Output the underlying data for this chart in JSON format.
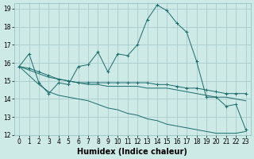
{
  "xlabel": "Humidex (Indice chaleur)",
  "ylabel": "",
  "xlim": [
    -0.5,
    23.5
  ],
  "ylim": [
    12,
    19.3
  ],
  "yticks": [
    12,
    13,
    14,
    15,
    16,
    17,
    18,
    19
  ],
  "xticks": [
    0,
    1,
    2,
    3,
    4,
    5,
    6,
    7,
    8,
    9,
    10,
    11,
    12,
    13,
    14,
    15,
    16,
    17,
    18,
    19,
    20,
    21,
    22,
    23
  ],
  "background_color": "#ceeae6",
  "grid_color": "#aacccc",
  "line_color": "#1a6b6b",
  "lines": [
    {
      "x": [
        0,
        1,
        2,
        3,
        4,
        5,
        6,
        7,
        8,
        9,
        10,
        11,
        12,
        13,
        14,
        15,
        16,
        17,
        18,
        19,
        20,
        21,
        22,
        23
      ],
      "y": [
        15.8,
        16.5,
        14.9,
        14.3,
        14.9,
        14.8,
        15.8,
        15.9,
        16.6,
        15.5,
        16.5,
        16.4,
        17.0,
        18.4,
        19.2,
        18.9,
        18.2,
        17.7,
        16.1,
        14.1,
        14.1,
        13.6,
        13.7,
        12.3
      ],
      "marker": true
    },
    {
      "x": [
        0,
        1,
        2,
        3,
        4,
        5,
        6,
        7,
        8,
        9,
        10,
        11,
        12,
        13,
        14,
        15,
        16,
        17,
        18,
        19,
        20,
        21,
        22,
        23
      ],
      "y": [
        15.8,
        15.7,
        15.5,
        15.3,
        15.1,
        15.0,
        14.9,
        14.9,
        14.9,
        14.9,
        14.9,
        14.9,
        14.9,
        14.9,
        14.8,
        14.8,
        14.7,
        14.6,
        14.6,
        14.5,
        14.4,
        14.3,
        14.3,
        14.3
      ],
      "marker": true
    },
    {
      "x": [
        0,
        1,
        2,
        3,
        4,
        5,
        6,
        7,
        8,
        9,
        10,
        11,
        12,
        13,
        14,
        15,
        16,
        17,
        18,
        19,
        20,
        21,
        22,
        23
      ],
      "y": [
        15.8,
        15.6,
        15.4,
        15.2,
        15.1,
        15.0,
        14.9,
        14.8,
        14.8,
        14.7,
        14.7,
        14.7,
        14.7,
        14.6,
        14.6,
        14.6,
        14.5,
        14.4,
        14.3,
        14.2,
        14.1,
        14.1,
        14.0,
        13.9
      ],
      "marker": false
    },
    {
      "x": [
        0,
        1,
        2,
        3,
        4,
        5,
        6,
        7,
        8,
        9,
        10,
        11,
        12,
        13,
        14,
        15,
        16,
        17,
        18,
        19,
        20,
        21,
        22,
        23
      ],
      "y": [
        15.8,
        15.3,
        14.8,
        14.4,
        14.2,
        14.1,
        14.0,
        13.9,
        13.7,
        13.5,
        13.4,
        13.2,
        13.1,
        12.9,
        12.8,
        12.6,
        12.5,
        12.4,
        12.3,
        12.2,
        12.1,
        12.1,
        12.1,
        12.2
      ],
      "marker": false
    }
  ],
  "tick_fontsize": 5.5,
  "label_fontsize": 7
}
